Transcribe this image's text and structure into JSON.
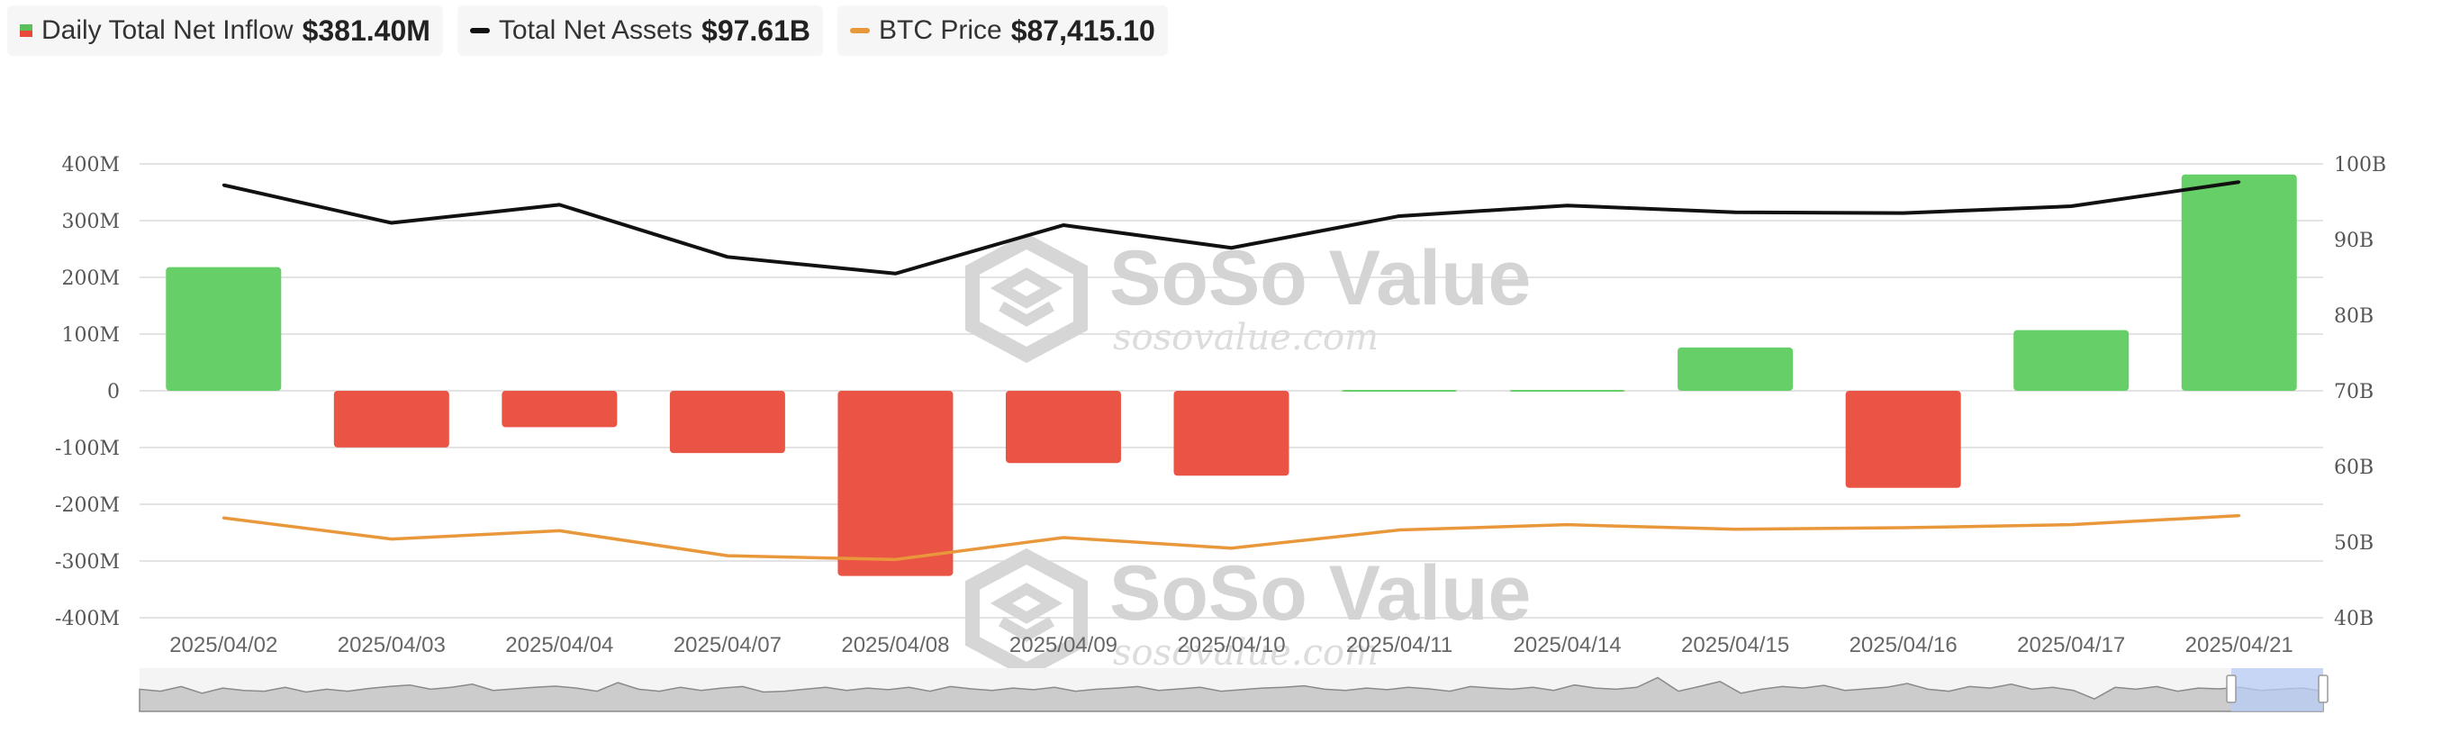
{
  "legend": {
    "inflow_label": "Daily Total Net Inflow",
    "inflow_value": "$381.40M",
    "assets_label": "Total Net Assets",
    "assets_value": "$97.61B",
    "btc_label": "BTC Price",
    "btc_value": "$87,415.10"
  },
  "watermark": {
    "brand": "SoSo Value",
    "site": "sosovalue.com"
  },
  "colors": {
    "positive": "#67cf67",
    "negative": "#e95445",
    "assets_line": "#111111",
    "btc_line": "#e8983a",
    "grid": "#e3e3e3",
    "navigator_fill": "#cccccc",
    "navigator_window": "#b8ccf5"
  },
  "chart_data": {
    "type": "bar",
    "categories": [
      "2025/04/02",
      "2025/04/03",
      "2025/04/04",
      "2025/04/07",
      "2025/04/08",
      "2025/04/09",
      "2025/04/10",
      "2025/04/11",
      "2025/04/14",
      "2025/04/15",
      "2025/04/16",
      "2025/04/17",
      "2025/04/21"
    ],
    "y_left": {
      "range": [
        -400,
        400
      ],
      "unit": "M",
      "ticks": [
        "400M",
        "300M",
        "200M",
        "100M",
        "0",
        "-100M",
        "-200M",
        "-300M",
        "-400M"
      ]
    },
    "y_right": {
      "range": [
        40,
        100
      ],
      "unit": "B",
      "ticks": [
        "100B",
        "90B",
        "80B",
        "70B",
        "60B",
        "50B",
        "40B"
      ]
    },
    "series": [
      {
        "name": "Daily Total Net Inflow",
        "kind": "bar",
        "axis": "left",
        "values": [
          218.1,
          -99.9,
          -64.1,
          -109.7,
          -326.3,
          -127.3,
          -149.7,
          1.5,
          1.5,
          76.4,
          -171.1,
          107.0,
          381.4
        ]
      },
      {
        "name": "Total Net Assets",
        "kind": "line",
        "axis": "right",
        "values": [
          97.2,
          92.2,
          94.6,
          87.7,
          85.5,
          91.9,
          88.9,
          93.1,
          94.5,
          93.6,
          93.5,
          94.4,
          97.6
        ]
      },
      {
        "name": "BTC Price",
        "kind": "line",
        "axis": "right",
        "values": [
          53.2,
          50.4,
          51.5,
          48.2,
          47.7,
          50.6,
          49.2,
          51.6,
          52.3,
          51.7,
          51.9,
          52.3,
          53.5
        ]
      }
    ],
    "grid": true,
    "legend_position": "top-left"
  },
  "navigator": {
    "profile": [
      0.55,
      0.5,
      0.62,
      0.45,
      0.58,
      0.52,
      0.5,
      0.6,
      0.48,
      0.55,
      0.5,
      0.57,
      0.62,
      0.66,
      0.55,
      0.6,
      0.68,
      0.52,
      0.56,
      0.6,
      0.63,
      0.58,
      0.5,
      0.72,
      0.55,
      0.5,
      0.6,
      0.52,
      0.58,
      0.62,
      0.48,
      0.5,
      0.55,
      0.6,
      0.52,
      0.58,
      0.54,
      0.6,
      0.5,
      0.62,
      0.56,
      0.52,
      0.58,
      0.54,
      0.6,
      0.5,
      0.55,
      0.58,
      0.62,
      0.52,
      0.56,
      0.6,
      0.5,
      0.54,
      0.58,
      0.6,
      0.64,
      0.55,
      0.52,
      0.58,
      0.54,
      0.6,
      0.56,
      0.5,
      0.62,
      0.58,
      0.55,
      0.6,
      0.52,
      0.66,
      0.58,
      0.55,
      0.6,
      0.85,
      0.5,
      0.62,
      0.75,
      0.45,
      0.55,
      0.62,
      0.58,
      0.65,
      0.52,
      0.56,
      0.6,
      0.7,
      0.55,
      0.5,
      0.62,
      0.58,
      0.68,
      0.55,
      0.6,
      0.52,
      0.3,
      0.6,
      0.55,
      0.62,
      0.5,
      0.58,
      0.56,
      0.6,
      0.52,
      0.55,
      0.58,
      0.5
    ]
  }
}
